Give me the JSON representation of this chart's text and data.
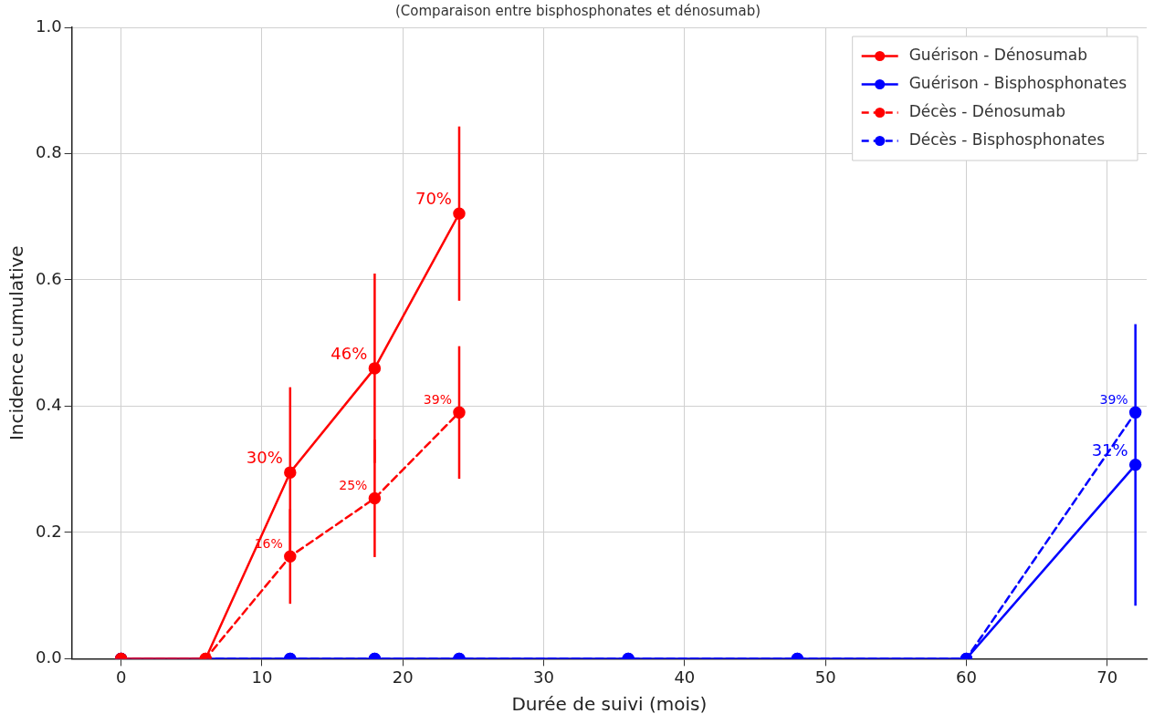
{
  "chart_data": {
    "type": "line",
    "title": "(Comparaison entre bisphosphonates et dénosumab)",
    "xlabel": "Durée de suivi (mois)",
    "ylabel": "Incidence cumulative",
    "xlim": [
      -3.5,
      72.8
    ],
    "xticks": [
      0,
      10,
      20,
      30,
      40,
      50,
      60,
      70
    ],
    "ylim": [
      0,
      1
    ],
    "yticks": [
      {
        "value": 0,
        "label": "0.0"
      },
      {
        "value": 0.2,
        "label": "0.2"
      },
      {
        "value": 0.4,
        "label": "0.4"
      },
      {
        "value": 0.6,
        "label": "0.6"
      },
      {
        "value": 0.8,
        "label": "0.8"
      },
      {
        "value": 1,
        "label": "1.0"
      }
    ],
    "grid": true,
    "legend": "top right",
    "marker": "circle",
    "series": [
      {
        "name": "Guérison - Dénosumab",
        "color": "#ff0000",
        "line_style": "solid",
        "x": [
          0,
          6,
          12,
          18,
          24
        ],
        "values": [
          0,
          0,
          0.295,
          0.46,
          0.705
        ],
        "errors": [
          null,
          null,
          0.135,
          0.15,
          0.138
        ],
        "value_labels": [
          null,
          null,
          "30%",
          "46%",
          "70%"
        ]
      },
      {
        "name": "Guérison - Bisphosphonates",
        "color": "#0000ff",
        "line_style": "solid",
        "x": [
          0,
          12,
          18,
          24,
          36,
          48,
          60,
          72
        ],
        "values": [
          0,
          0,
          0,
          0,
          0,
          0,
          0,
          0.307
        ],
        "errors": [
          null,
          null,
          null,
          null,
          null,
          null,
          null,
          0.223
        ],
        "value_labels": [
          null,
          null,
          null,
          null,
          null,
          null,
          null,
          "31%"
        ]
      },
      {
        "name": "Décès - Dénosumab",
        "color": "#ff0000",
        "line_style": "dashed",
        "x": [
          0,
          6,
          12,
          18,
          24
        ],
        "values": [
          0,
          0,
          0.162,
          0.254,
          0.39
        ],
        "errors": [
          null,
          null,
          0.075,
          0.093,
          0.105
        ],
        "value_labels": [
          null,
          null,
          "16%",
          "25%",
          "39%"
        ]
      },
      {
        "name": "Décès - Bisphosphonates",
        "color": "#0000ff",
        "line_style": "dashed",
        "x": [
          0,
          12,
          18,
          24,
          36,
          48,
          60,
          72
        ],
        "values": [
          0,
          0,
          0,
          0,
          0,
          0,
          0,
          0.39
        ],
        "value_labels": [
          null,
          null,
          null,
          null,
          null,
          null,
          null,
          "39%"
        ]
      }
    ]
  }
}
